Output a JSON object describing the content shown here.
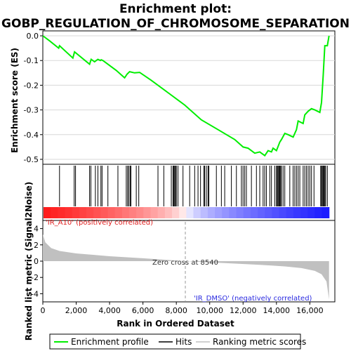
{
  "chart_data": {
    "type": "line",
    "title_lines": [
      "Enrichment plot:",
      "GOBP_REGULATION_OF_CHROMOSOME_SEPARATION"
    ],
    "top_panel": {
      "ylabel": "Enrichment score (ES)",
      "ylim": [
        -0.52,
        0.02
      ],
      "yticks": [
        0.0,
        -0.1,
        -0.2,
        -0.3,
        -0.4,
        -0.5
      ],
      "ytick_labels": [
        "0.0",
        "-0.1",
        "-0.2",
        "-0.3",
        "-0.4",
        "-0.5"
      ],
      "series": [
        {
          "name": "Enrichment profile",
          "color": "#00ee00",
          "points": [
            [
              0,
              0.0
            ],
            [
              400,
              -0.02
            ],
            [
              950,
              -0.05
            ],
            [
              1000,
              -0.04
            ],
            [
              1800,
              -0.09
            ],
            [
              1900,
              -0.065
            ],
            [
              2800,
              -0.115
            ],
            [
              2900,
              -0.095
            ],
            [
              3100,
              -0.105
            ],
            [
              3300,
              -0.095
            ],
            [
              3450,
              -0.1
            ],
            [
              3500,
              -0.097
            ],
            [
              3600,
              -0.1
            ],
            [
              3800,
              -0.11
            ],
            [
              4400,
              -0.14
            ],
            [
              4900,
              -0.17
            ],
            [
              5050,
              -0.155
            ],
            [
              5200,
              -0.145
            ],
            [
              5500,
              -0.15
            ],
            [
              5800,
              -0.148
            ],
            [
              6500,
              -0.18
            ],
            [
              7500,
              -0.23
            ],
            [
              8500,
              -0.28
            ],
            [
              9500,
              -0.34
            ],
            [
              10500,
              -0.38
            ],
            [
              11500,
              -0.42
            ],
            [
              12000,
              -0.45
            ],
            [
              12300,
              -0.455
            ],
            [
              12700,
              -0.475
            ],
            [
              13000,
              -0.47
            ],
            [
              13300,
              -0.485
            ],
            [
              13500,
              -0.465
            ],
            [
              13700,
              -0.47
            ],
            [
              13800,
              -0.455
            ],
            [
              14000,
              -0.465
            ],
            [
              14200,
              -0.43
            ],
            [
              14300,
              -0.42
            ],
            [
              14500,
              -0.395
            ],
            [
              14700,
              -0.4
            ],
            [
              15000,
              -0.41
            ],
            [
              15200,
              -0.38
            ],
            [
              15300,
              -0.345
            ],
            [
              15600,
              -0.355
            ],
            [
              15700,
              -0.32
            ],
            [
              15900,
              -0.305
            ],
            [
              16100,
              -0.295
            ],
            [
              16300,
              -0.3
            ],
            [
              16600,
              -0.31
            ],
            [
              16700,
              -0.27
            ],
            [
              16800,
              -0.16
            ],
            [
              16900,
              -0.04
            ],
            [
              17050,
              -0.04
            ],
            [
              17150,
              0.0
            ]
          ]
        }
      ]
    },
    "hits": {
      "name": "Hits",
      "positions": [
        1000,
        1880,
        1960,
        2800,
        2880,
        3150,
        3300,
        3480,
        3550,
        3900,
        4500,
        5000,
        5080,
        5150,
        5230,
        5280,
        5600,
        5750,
        6900,
        7250,
        7700,
        7800,
        7850,
        7900,
        7950,
        8000,
        8100,
        8400,
        8800,
        9100,
        9300,
        9450,
        9650,
        9700,
        9800,
        9900,
        9950,
        10400,
        10700,
        10900,
        11300,
        11600,
        11900,
        12000,
        12100,
        12200,
        12500,
        12800,
        13000,
        13200,
        13300,
        13400,
        13600,
        13700,
        13900,
        14000,
        14050,
        14100,
        14150,
        14200,
        14250,
        14300,
        14400,
        14500,
        14800,
        15000,
        15100,
        15200,
        15300,
        15400,
        15600,
        15700,
        15800,
        15900,
        16000,
        16100,
        16250,
        16650,
        16700,
        16750,
        16800,
        16850,
        16900,
        16950,
        17050
      ]
    },
    "bottom_panel": {
      "ylabel": "Ranked list metric (Signal2Noise)",
      "ylim": [
        -5,
        5
      ],
      "yticks": [
        4,
        2,
        0,
        -2,
        -4
      ],
      "ytick_labels": [
        "4",
        "2",
        "0",
        "-2",
        "-4"
      ],
      "series_name": "Ranking metric scores",
      "curve": [
        [
          0,
          3.3
        ],
        [
          150,
          2.3
        ],
        [
          500,
          1.6
        ],
        [
          1000,
          1.25
        ],
        [
          2000,
          0.95
        ],
        [
          4000,
          0.6
        ],
        [
          6000,
          0.35
        ],
        [
          8540,
          0.0
        ],
        [
          11000,
          -0.25
        ],
        [
          13000,
          -0.45
        ],
        [
          14500,
          -0.65
        ],
        [
          15500,
          -0.85
        ],
        [
          16300,
          -1.2
        ],
        [
          16700,
          -1.6
        ],
        [
          17000,
          -2.5
        ],
        [
          17150,
          -4.7
        ]
      ],
      "zero_cross_label": "Zero cross at 8540",
      "zero_cross_x": 8540,
      "pos_label": "'IR_A10' (positively correlated)",
      "neg_label": "'IR_DMSO' (negatively correlated)"
    },
    "xlabel": "Rank in Ordered Dataset",
    "xlim": [
      0,
      17500
    ],
    "xticks": [
      0,
      2000,
      4000,
      6000,
      8000,
      10000,
      12000,
      14000,
      16000
    ],
    "xtick_labels": [
      "0",
      "2,000",
      "4,000",
      "6,000",
      "8,000",
      "10,000",
      "12,000",
      "14,000",
      "16,000"
    ],
    "legend": {
      "placement": "bottom",
      "entries": [
        "Enrichment profile",
        "Hits",
        "Ranking metric scores"
      ]
    },
    "colors": {
      "profile": "#00ee00",
      "hits": "#000000",
      "metric_fill": "#c0c0c0",
      "pos_label": "#e02020",
      "neg_label": "#2a2ae0"
    }
  }
}
